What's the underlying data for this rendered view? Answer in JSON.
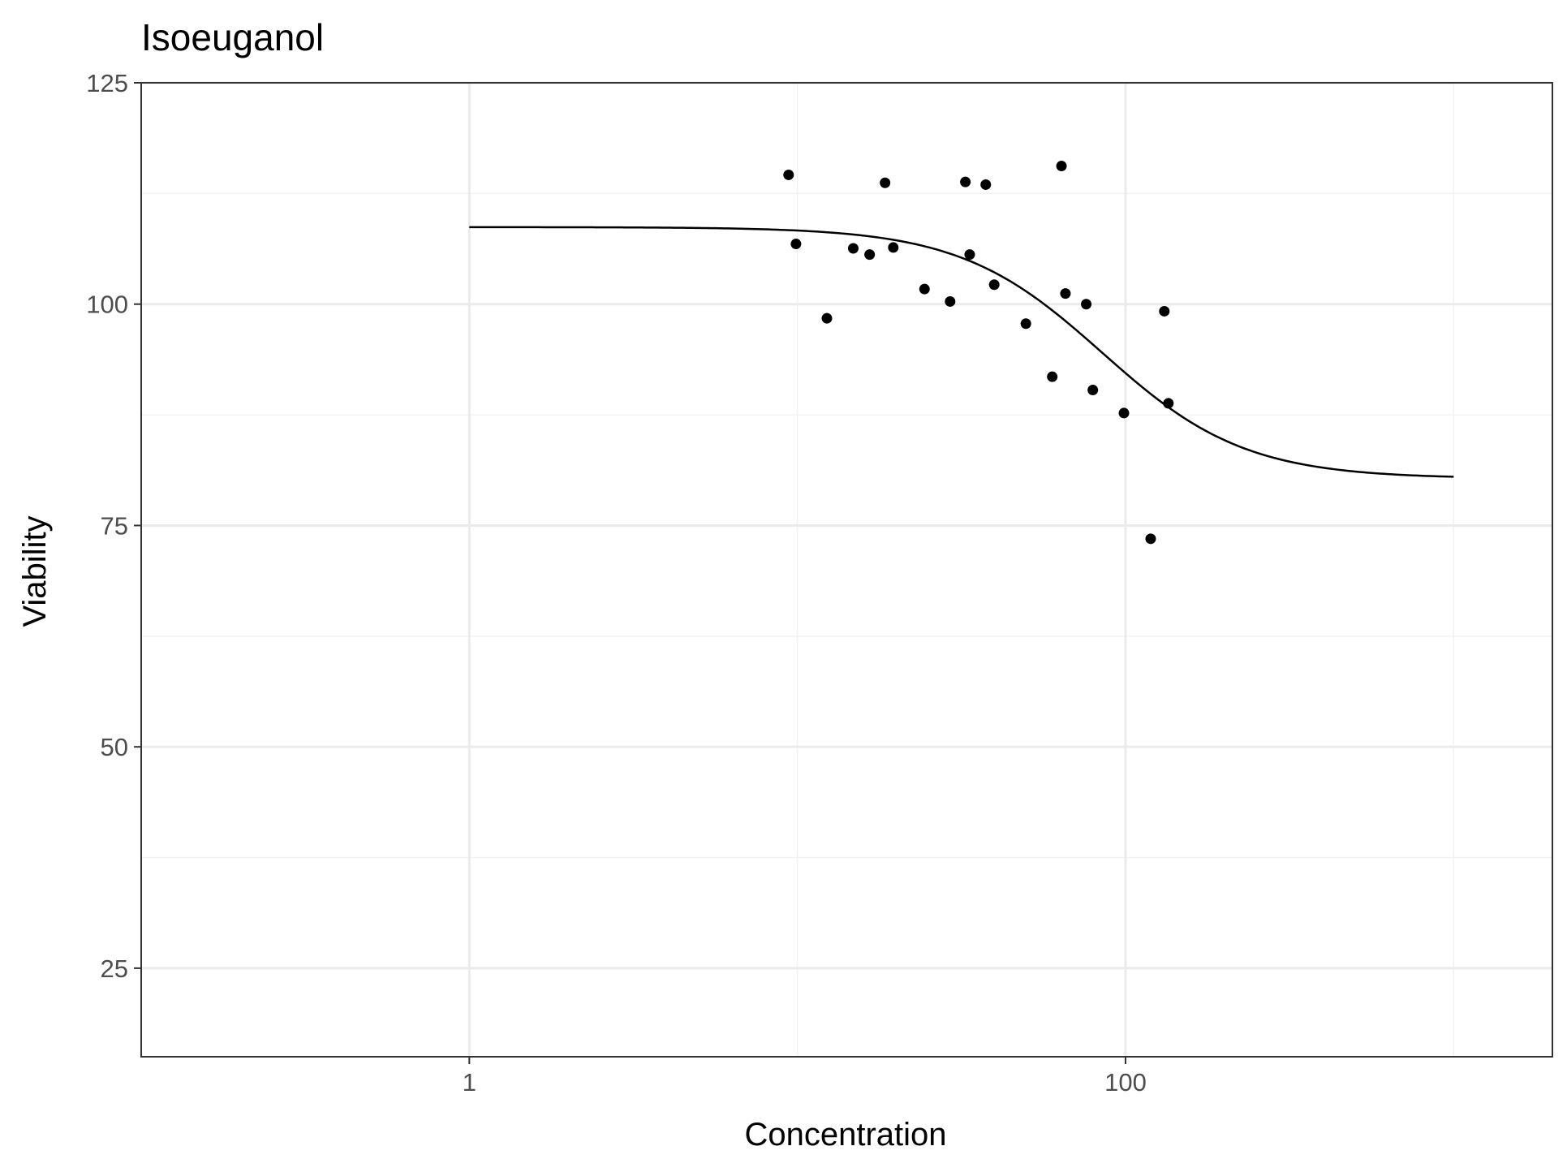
{
  "chart_data": {
    "type": "scatter",
    "title": "Isoeuganol",
    "xlabel": "Concentration",
    "ylabel": "Viability",
    "x_scale": "log10",
    "xlim": [
      0.1,
      2000
    ],
    "ylim": [
      15,
      125
    ],
    "x_ticks": [
      {
        "value": 1,
        "label": "1"
      },
      {
        "value": 100,
        "label": "100"
      }
    ],
    "x_minor_ticks": [
      0.1,
      10,
      1000
    ],
    "y_ticks": [
      {
        "value": 25,
        "label": "25"
      },
      {
        "value": 50,
        "label": "50"
      },
      {
        "value": 75,
        "label": "75"
      },
      {
        "value": 100,
        "label": "100"
      },
      {
        "value": 125,
        "label": "125"
      }
    ],
    "y_minor_ticks": [
      37.5,
      62.5,
      87.5,
      112.5
    ],
    "grid": true,
    "points": [
      {
        "x": 9.4,
        "y": 114.6
      },
      {
        "x": 9.9,
        "y": 106.8
      },
      {
        "x": 12.3,
        "y": 98.4
      },
      {
        "x": 14.8,
        "y": 106.3
      },
      {
        "x": 16.6,
        "y": 105.6
      },
      {
        "x": 18.5,
        "y": 113.7
      },
      {
        "x": 19.6,
        "y": 106.4
      },
      {
        "x": 24.4,
        "y": 101.7
      },
      {
        "x": 29.2,
        "y": 100.3
      },
      {
        "x": 32.5,
        "y": 113.8
      },
      {
        "x": 33.5,
        "y": 105.6
      },
      {
        "x": 37.5,
        "y": 113.5
      },
      {
        "x": 39.8,
        "y": 102.2
      },
      {
        "x": 49.7,
        "y": 97.8
      },
      {
        "x": 59.8,
        "y": 91.8
      },
      {
        "x": 63.8,
        "y": 115.6
      },
      {
        "x": 65.6,
        "y": 101.2
      },
      {
        "x": 75.9,
        "y": 100.0
      },
      {
        "x": 79.5,
        "y": 90.3
      },
      {
        "x": 98.9,
        "y": 87.7
      },
      {
        "x": 119.3,
        "y": 73.5
      },
      {
        "x": 131.3,
        "y": 99.2
      },
      {
        "x": 135.1,
        "y": 88.8
      }
    ],
    "fit_curve": {
      "type": "log-logistic",
      "top": 108.7,
      "bottom": 80.3,
      "ec50": 85,
      "hill": 2.0,
      "x_range": [
        1,
        1000
      ]
    }
  }
}
